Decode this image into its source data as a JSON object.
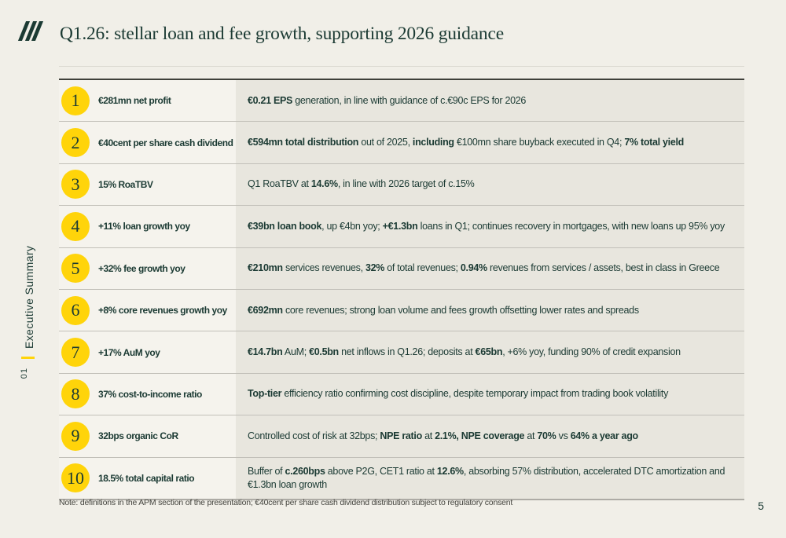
{
  "header": {
    "title": "Q1.26: stellar loan and fee growth, supporting 2026 guidance",
    "logo_icon": "three-diagonal-strokes"
  },
  "sidebar": {
    "section_label": "Executive Summary",
    "section_number": "01"
  },
  "table": {
    "rows": [
      {
        "number": "1",
        "label": "€281mn net profit",
        "description": [
          {
            "text": "€0.21 EPS",
            "bold": true
          },
          {
            "text": " generation, in line with guidance of c.€90c EPS for 2026",
            "bold": false
          }
        ]
      },
      {
        "number": "2",
        "label": "€40cent per share cash dividend",
        "description": [
          {
            "text": "€594mn total distribution",
            "bold": true
          },
          {
            "text": " out of 2025, ",
            "bold": false
          },
          {
            "text": "including",
            "bold": true
          },
          {
            "text": " €100mn share buyback executed in Q4; ",
            "bold": false
          },
          {
            "text": "7% total yield",
            "bold": true
          }
        ]
      },
      {
        "number": "3",
        "label": "15% RoaTBV",
        "description": [
          {
            "text": "Q1 RoaTBV at ",
            "bold": false
          },
          {
            "text": "14.6%",
            "bold": true
          },
          {
            "text": ", in line with 2026 target of c.15%",
            "bold": false
          }
        ]
      },
      {
        "number": "4",
        "label": "+11% loan growth yoy",
        "description": [
          {
            "text": "€39bn loan book",
            "bold": true
          },
          {
            "text": ", up €4bn yoy; ",
            "bold": false
          },
          {
            "text": "+€1.3bn",
            "bold": true
          },
          {
            "text": " loans in Q1; continues recovery in mortgages, with new loans up 95% yoy",
            "bold": false
          }
        ]
      },
      {
        "number": "5",
        "label": "+32% fee growth yoy",
        "description": [
          {
            "text": "€210mn",
            "bold": true
          },
          {
            "text": " services revenues, ",
            "bold": false
          },
          {
            "text": "32%",
            "bold": true
          },
          {
            "text": " of total revenues; ",
            "bold": false
          },
          {
            "text": "0.94%",
            "bold": true
          },
          {
            "text": " revenues from services / assets, best in class in Greece",
            "bold": false
          }
        ]
      },
      {
        "number": "6",
        "label": "+8% core revenues growth yoy",
        "description": [
          {
            "text": "€692mn",
            "bold": true
          },
          {
            "text": " core revenues; strong loan volume and fees growth offsetting lower rates and spreads",
            "bold": false
          }
        ]
      },
      {
        "number": "7",
        "label": "+17% AuM yoy",
        "description": [
          {
            "text": "€14.7bn",
            "bold": true
          },
          {
            "text": " AuM; ",
            "bold": false
          },
          {
            "text": "€0.5bn",
            "bold": true
          },
          {
            "text": " net inflows in Q1.26; deposits at ",
            "bold": false
          },
          {
            "text": "€65bn",
            "bold": true
          },
          {
            "text": ", +6% yoy, funding 90% of credit expansion",
            "bold": false
          }
        ]
      },
      {
        "number": "8",
        "label": "37% cost-to-income ratio",
        "description": [
          {
            "text": "Top-tier",
            "bold": true
          },
          {
            "text": " efficiency ratio confirming cost discipline, despite temporary impact from trading book volatility",
            "bold": false
          }
        ]
      },
      {
        "number": "9",
        "label": "32bps organic CoR",
        "description": [
          {
            "text": "Controlled cost of risk at 32bps; ",
            "bold": false
          },
          {
            "text": "NPE ratio",
            "bold": true
          },
          {
            "text": " at ",
            "bold": false
          },
          {
            "text": "2.1%, NPE coverage",
            "bold": true
          },
          {
            "text": " at ",
            "bold": false
          },
          {
            "text": "70%",
            "bold": true
          },
          {
            "text": " vs ",
            "bold": false
          },
          {
            "text": "64% a year ago",
            "bold": true
          }
        ]
      },
      {
        "number": "10",
        "label": "18.5% total capital ratio",
        "description": [
          {
            "text": "Buffer of ",
            "bold": false
          },
          {
            "text": "c.260bps",
            "bold": true
          },
          {
            "text": " above P2G, CET1 ratio at ",
            "bold": false
          },
          {
            "text": "12.6%",
            "bold": true
          },
          {
            "text": ", absorbing 57% distribution, accelerated DTC amortization and €1.3bn loan growth",
            "bold": false
          }
        ]
      }
    ]
  },
  "footer": {
    "note": "Note: definitions in the APM section of the presentation; €40cent per share cash dividend distribution subject to regulatory consent",
    "page_number": "5"
  },
  "colors": {
    "background": "#F1EFE8",
    "key_column_bg": "#F5F3ED",
    "description_column_bg": "#E8E6DE",
    "brand_green": "#1B3A33",
    "brand_yellow": "#FFD40A"
  }
}
